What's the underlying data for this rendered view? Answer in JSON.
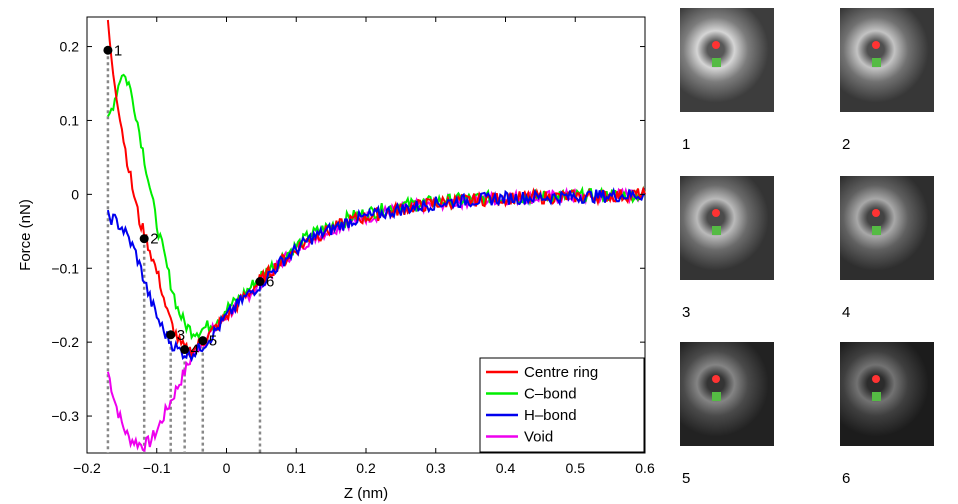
{
  "chart_data": {
    "type": "line",
    "xlabel": "Z (nm)",
    "ylabel": "Force (nN)",
    "xlim": [
      -0.2,
      0.6
    ],
    "ylim": [
      -0.35,
      0.24
    ],
    "xticks": [
      "−0.2",
      "−0.1",
      "0",
      "0.1",
      "0.2",
      "0.3",
      "0.4",
      "0.5",
      "0.6"
    ],
    "yticks": [
      "−0.3",
      "−0.2",
      "−0.1",
      "0",
      "0.1",
      "0.2"
    ],
    "xtick_values": [
      -0.2,
      -0.1,
      0,
      0.1,
      0.2,
      0.3,
      0.4,
      0.5,
      0.6
    ],
    "ytick_values": [
      -0.3,
      -0.2,
      -0.1,
      0,
      0.1,
      0.2
    ],
    "grid": false,
    "legend_position": "bottom-right",
    "series": [
      {
        "name": "Centre ring",
        "color": "#ff0000",
        "x": [
          -0.17,
          -0.165,
          -0.155,
          -0.145,
          -0.135,
          -0.125,
          -0.115,
          -0.105,
          -0.095,
          -0.085,
          -0.075,
          -0.065,
          -0.055,
          -0.045,
          -0.035,
          -0.025,
          -0.01,
          0.0,
          0.02,
          0.05,
          0.08,
          0.12,
          0.18,
          0.25,
          0.3,
          0.35,
          0.4,
          0.45,
          0.5,
          0.55,
          0.6
        ],
        "y": [
          0.235,
          0.18,
          0.12,
          0.06,
          0.01,
          -0.035,
          -0.06,
          -0.09,
          -0.12,
          -0.16,
          -0.185,
          -0.205,
          -0.212,
          -0.208,
          -0.2,
          -0.19,
          -0.175,
          -0.165,
          -0.145,
          -0.115,
          -0.09,
          -0.06,
          -0.035,
          -0.02,
          -0.012,
          -0.008,
          -0.005,
          -0.004,
          -0.003,
          -0.002,
          0.0
        ]
      },
      {
        "name": "C–bond",
        "color": "#00ee00",
        "x": [
          -0.17,
          -0.16,
          -0.15,
          -0.14,
          -0.13,
          -0.12,
          -0.11,
          -0.1,
          -0.09,
          -0.08,
          -0.07,
          -0.06,
          -0.05,
          -0.04,
          -0.03,
          -0.02,
          -0.01,
          0.0,
          0.02,
          0.05,
          0.08,
          0.12,
          0.18,
          0.25,
          0.3,
          0.35,
          0.4,
          0.45,
          0.5,
          0.55,
          0.6
        ],
        "y": [
          0.1,
          0.13,
          0.165,
          0.15,
          0.11,
          0.06,
          0.01,
          -0.04,
          -0.08,
          -0.12,
          -0.155,
          -0.175,
          -0.185,
          -0.185,
          -0.18,
          -0.175,
          -0.165,
          -0.155,
          -0.14,
          -0.11,
          -0.085,
          -0.055,
          -0.03,
          -0.015,
          -0.01,
          -0.006,
          -0.004,
          -0.003,
          -0.002,
          -0.001,
          0.0
        ]
      },
      {
        "name": "H–bond",
        "color": "#0000ee",
        "x": [
          -0.17,
          -0.16,
          -0.15,
          -0.14,
          -0.13,
          -0.12,
          -0.11,
          -0.1,
          -0.09,
          -0.08,
          -0.07,
          -0.06,
          -0.05,
          -0.04,
          -0.03,
          -0.02,
          -0.01,
          0.0,
          0.02,
          0.05,
          0.08,
          0.12,
          0.18,
          0.25,
          0.3,
          0.35,
          0.4,
          0.45,
          0.5,
          0.55,
          0.6
        ],
        "y": [
          -0.03,
          -0.035,
          -0.045,
          -0.06,
          -0.08,
          -0.11,
          -0.14,
          -0.165,
          -0.185,
          -0.2,
          -0.21,
          -0.215,
          -0.215,
          -0.21,
          -0.2,
          -0.19,
          -0.178,
          -0.165,
          -0.145,
          -0.12,
          -0.09,
          -0.06,
          -0.035,
          -0.02,
          -0.012,
          -0.008,
          -0.005,
          -0.004,
          -0.003,
          -0.002,
          0.0
        ]
      },
      {
        "name": "Void",
        "color": "#ee00ee",
        "x": [
          -0.17,
          -0.16,
          -0.15,
          -0.14,
          -0.13,
          -0.12,
          -0.11,
          -0.1,
          -0.09,
          -0.08,
          -0.07,
          -0.06,
          -0.05,
          -0.04,
          -0.03,
          -0.02,
          -0.01,
          0.0,
          0.02,
          0.05,
          0.08,
          0.12,
          0.18,
          0.25,
          0.3,
          0.35,
          0.4,
          0.45,
          0.5,
          0.55,
          0.6
        ],
        "y": [
          -0.24,
          -0.28,
          -0.31,
          -0.33,
          -0.335,
          -0.34,
          -0.335,
          -0.32,
          -0.3,
          -0.28,
          -0.26,
          -0.24,
          -0.22,
          -0.205,
          -0.195,
          -0.185,
          -0.175,
          -0.165,
          -0.145,
          -0.12,
          -0.09,
          -0.06,
          -0.035,
          -0.02,
          -0.012,
          -0.008,
          -0.005,
          -0.004,
          -0.003,
          -0.002,
          0.0
        ]
      }
    ],
    "markers": [
      {
        "label": "1",
        "x": -0.17,
        "y": 0.195
      },
      {
        "label": "2",
        "x": -0.118,
        "y": -0.06
      },
      {
        "label": "3",
        "x": -0.08,
        "y": -0.19
      },
      {
        "label": "4",
        "x": -0.06,
        "y": -0.21
      },
      {
        "label": "5",
        "x": -0.034,
        "y": -0.198
      },
      {
        "label": "6",
        "x": 0.048,
        "y": -0.118
      }
    ]
  },
  "images": {
    "panels": [
      {
        "label": "1",
        "brightness": 0.85
      },
      {
        "label": "2",
        "brightness": 0.75
      },
      {
        "label": "3",
        "brightness": 0.7
      },
      {
        "label": "4",
        "brightness": 0.6
      },
      {
        "label": "5",
        "brightness": 0.4
      },
      {
        "label": "6",
        "brightness": 0.3
      }
    ],
    "marker_colors": {
      "centre": "#ff3333",
      "c_bond": "#55bb44",
      "h_bond": "#3355dd",
      "void": "#cc55cc"
    }
  }
}
